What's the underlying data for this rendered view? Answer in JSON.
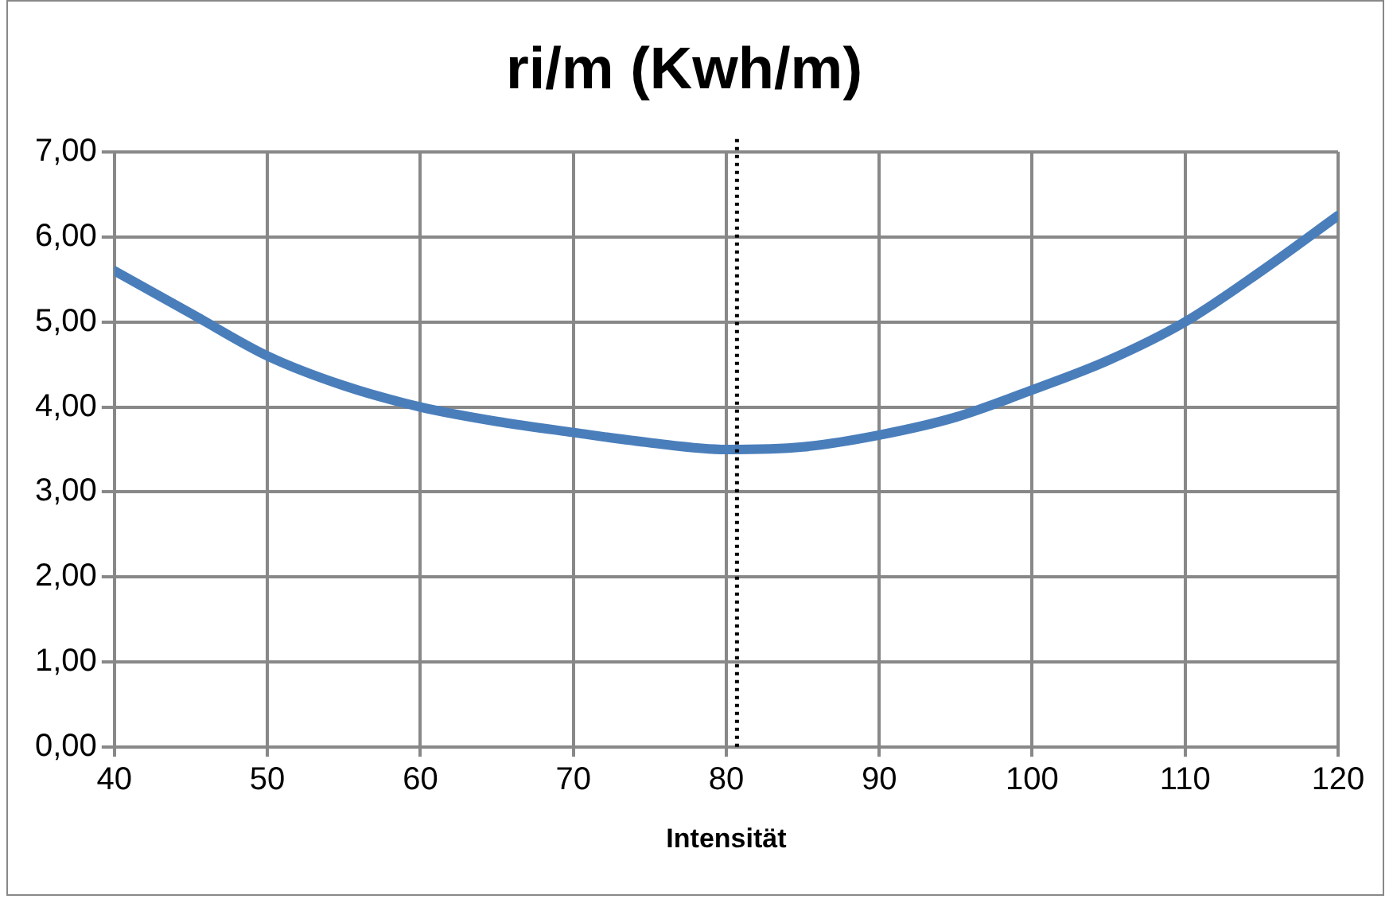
{
  "chart_data": {
    "type": "line",
    "title": "ri/m (Kwh/m)",
    "xlabel": "Intensität",
    "x": [
      40,
      45,
      50,
      55,
      60,
      65,
      70,
      75,
      80,
      85,
      90,
      95,
      100,
      105,
      110,
      115,
      120
    ],
    "series": [
      {
        "color": "#4a7ebb",
        "values": [
          5.6,
          5.1,
          4.6,
          4.25,
          4.0,
          3.83,
          3.7,
          3.58,
          3.5,
          3.53,
          3.67,
          3.88,
          4.2,
          4.55,
          5.0,
          5.6,
          6.25
        ]
      }
    ],
    "xlim": [
      40,
      120
    ],
    "xticks": [
      40,
      50,
      60,
      70,
      80,
      90,
      100,
      110,
      120
    ],
    "ylim": [
      0,
      7
    ],
    "yticks": [
      {
        "value": 0,
        "label": "0,00"
      },
      {
        "value": 1,
        "label": "1,00"
      },
      {
        "value": 2,
        "label": "2,00"
      },
      {
        "value": 3,
        "label": "3,00"
      },
      {
        "value": 4,
        "label": "4,00"
      },
      {
        "value": 5,
        "label": "5,00"
      },
      {
        "value": 6,
        "label": "6,00"
      },
      {
        "value": 7,
        "label": "7,00"
      }
    ],
    "ref_lines": [
      {
        "axis": "x",
        "value": 80.7,
        "color": "#000000",
        "line_style": "dotted"
      }
    ],
    "grid": true,
    "legend": false,
    "marker": "none",
    "line_style": "solid"
  }
}
